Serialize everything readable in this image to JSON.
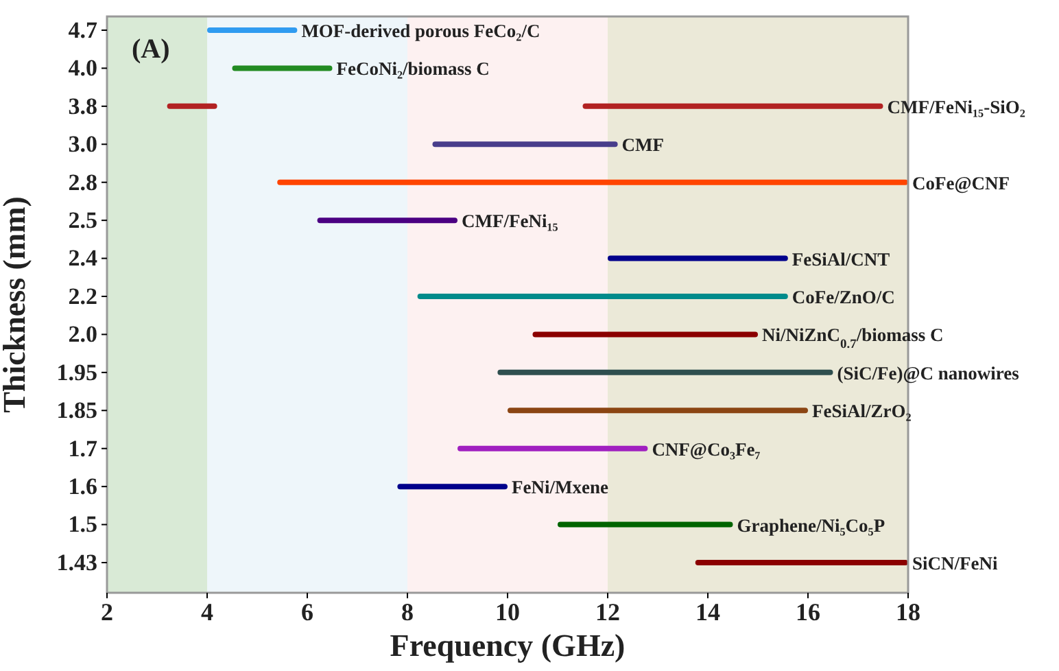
{
  "chart_data": {
    "type": "bar",
    "orientation": "horizontal",
    "xlabel": "Frequency (GHz)",
    "ylabel": "Thickness (mm)",
    "categories": [
      "4.7",
      "4.0",
      "3.8",
      "3.0",
      "2.8",
      "2.5",
      "2.4",
      "2.2",
      "2.0",
      "1.95",
      "1.85",
      "1.7",
      "1.6",
      "1.5",
      "1.43"
    ],
    "series": [
      {
        "base": [
          4.0,
          4.5,
          11.5,
          8.5,
          5.4,
          6.2,
          12.0,
          8.2,
          10.5,
          9.8,
          10.0,
          9.0,
          7.8,
          11.0,
          13.75
        ],
        "values": [
          1.8,
          2.0,
          6.0,
          3.7,
          12.6,
          2.8,
          3.6,
          7.4,
          4.5,
          6.7,
          6.0,
          3.8,
          2.2,
          3.5,
          4.25
        ],
        "colors": [
          "#2f9bf0",
          "#228b22",
          "#b22222",
          "#483d8b",
          "#ff4500",
          "#4b0082",
          "#00008b",
          "#008b8b",
          "#8b0000",
          "#2f4f4f",
          "#8b4513",
          "#a020c0",
          "#00008b",
          "#006400",
          "#8b0000"
        ]
      },
      {
        "base": [
          null,
          null,
          3.2,
          null,
          null,
          null,
          null,
          null,
          null,
          null,
          null,
          null,
          null,
          null,
          null
        ],
        "values": [
          null,
          null,
          1.0,
          null,
          null,
          null,
          null,
          null,
          null,
          null,
          null,
          null,
          null,
          null,
          null
        ],
        "color": "#b22222"
      }
    ],
    "xlim": [
      2,
      18
    ],
    "xticks": [
      2,
      4,
      6,
      8,
      10,
      12,
      14,
      16,
      18
    ],
    "bands": [
      {
        "axis": "x",
        "from": 2,
        "to": 4,
        "color": "#d9ead6"
      },
      {
        "axis": "x",
        "from": 4,
        "to": 8,
        "color": "#eef6fa"
      },
      {
        "axis": "x",
        "from": 8,
        "to": 12,
        "color": "#fdf1f1"
      },
      {
        "axis": "x",
        "from": 12,
        "to": 18,
        "color": "#ebe9d8"
      }
    ],
    "annotations": [
      "(A)",
      {
        "text": "MOF-derived porous FeCo₂/C",
        "x": 5.8,
        "y": "4.7"
      },
      {
        "text": "FeCoNi₂/biomass C",
        "x": 6.5,
        "y": "4.0"
      },
      {
        "text": "CMF/FeNi₁₅-SiO₂",
        "x": 17.5,
        "y": "3.8"
      },
      {
        "text": "CMF",
        "x": 12.2,
        "y": "3.0"
      },
      {
        "text": "CoFe@CNF",
        "x": 18,
        "y": "2.8"
      },
      {
        "text": "CMF/FeNi₁₅",
        "x": 9.0,
        "y": "2.5"
      },
      {
        "text": "FeSiAl/CNT",
        "x": 15.6,
        "y": "2.4"
      },
      {
        "text": "CoFe/ZnO/C",
        "x": 15.6,
        "y": "2.2"
      },
      {
        "text": "Ni/NiZnC$_{0.7}$/biomass C",
        "x": 15.0,
        "y": "2.0"
      },
      {
        "text": "(SiC/Fe)@C nanowires",
        "x": 16.5,
        "y": "1.95"
      },
      {
        "text": "FeSiAl/ZrO₂",
        "x": 16.0,
        "y": "1.85"
      },
      {
        "text": "CNF@Co₃Fe₇",
        "x": 12.8,
        "y": "1.7"
      },
      {
        "text": "FeNi/Mxene",
        "x": 10.0,
        "y": "1.6"
      },
      {
        "text": "Graphene/Ni₅Co₅P",
        "x": 14.5,
        "y": "1.5"
      },
      {
        "text": "SiCN/FeNi",
        "x": 18,
        "y": "1.43"
      }
    ]
  }
}
